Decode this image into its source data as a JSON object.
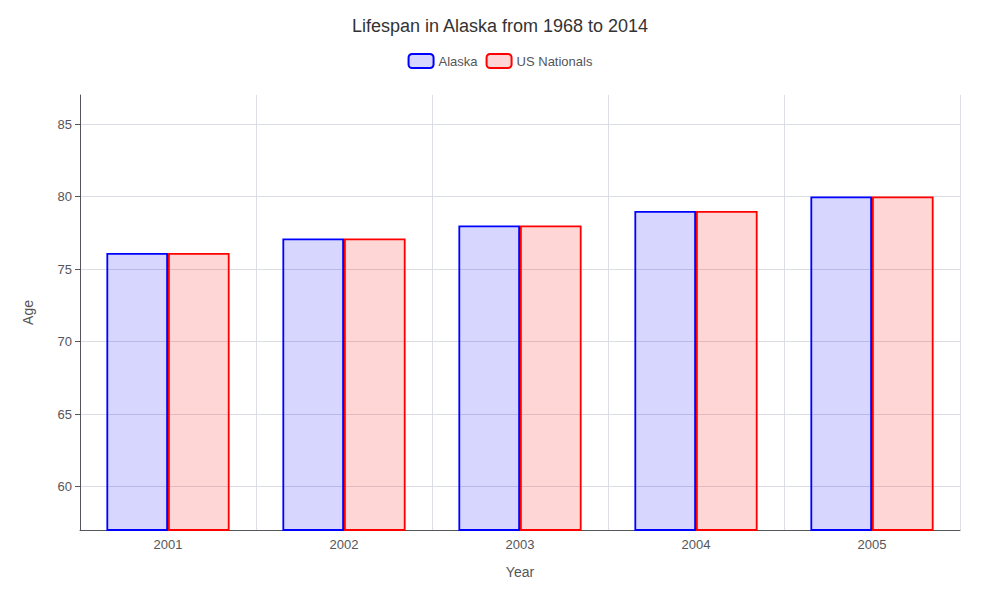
{
  "chart_data": {
    "type": "bar",
    "title": "Lifespan in Alaska from 1968 to 2014",
    "xlabel": "Year",
    "ylabel": "Age",
    "categories": [
      "2001",
      "2002",
      "2003",
      "2004",
      "2005"
    ],
    "series": [
      {
        "name": "Alaska",
        "color": "#0000ff",
        "values": [
          76.1,
          77.1,
          78.0,
          79.0,
          80.0
        ]
      },
      {
        "name": "US Nationals",
        "color": "#ff0000",
        "values": [
          76.1,
          77.1,
          78.0,
          79.0,
          80.0
        ]
      }
    ],
    "ylim": [
      57,
      87
    ],
    "yticks": [
      60,
      65,
      70,
      75,
      80,
      85
    ],
    "grid": true,
    "legend": "top"
  }
}
